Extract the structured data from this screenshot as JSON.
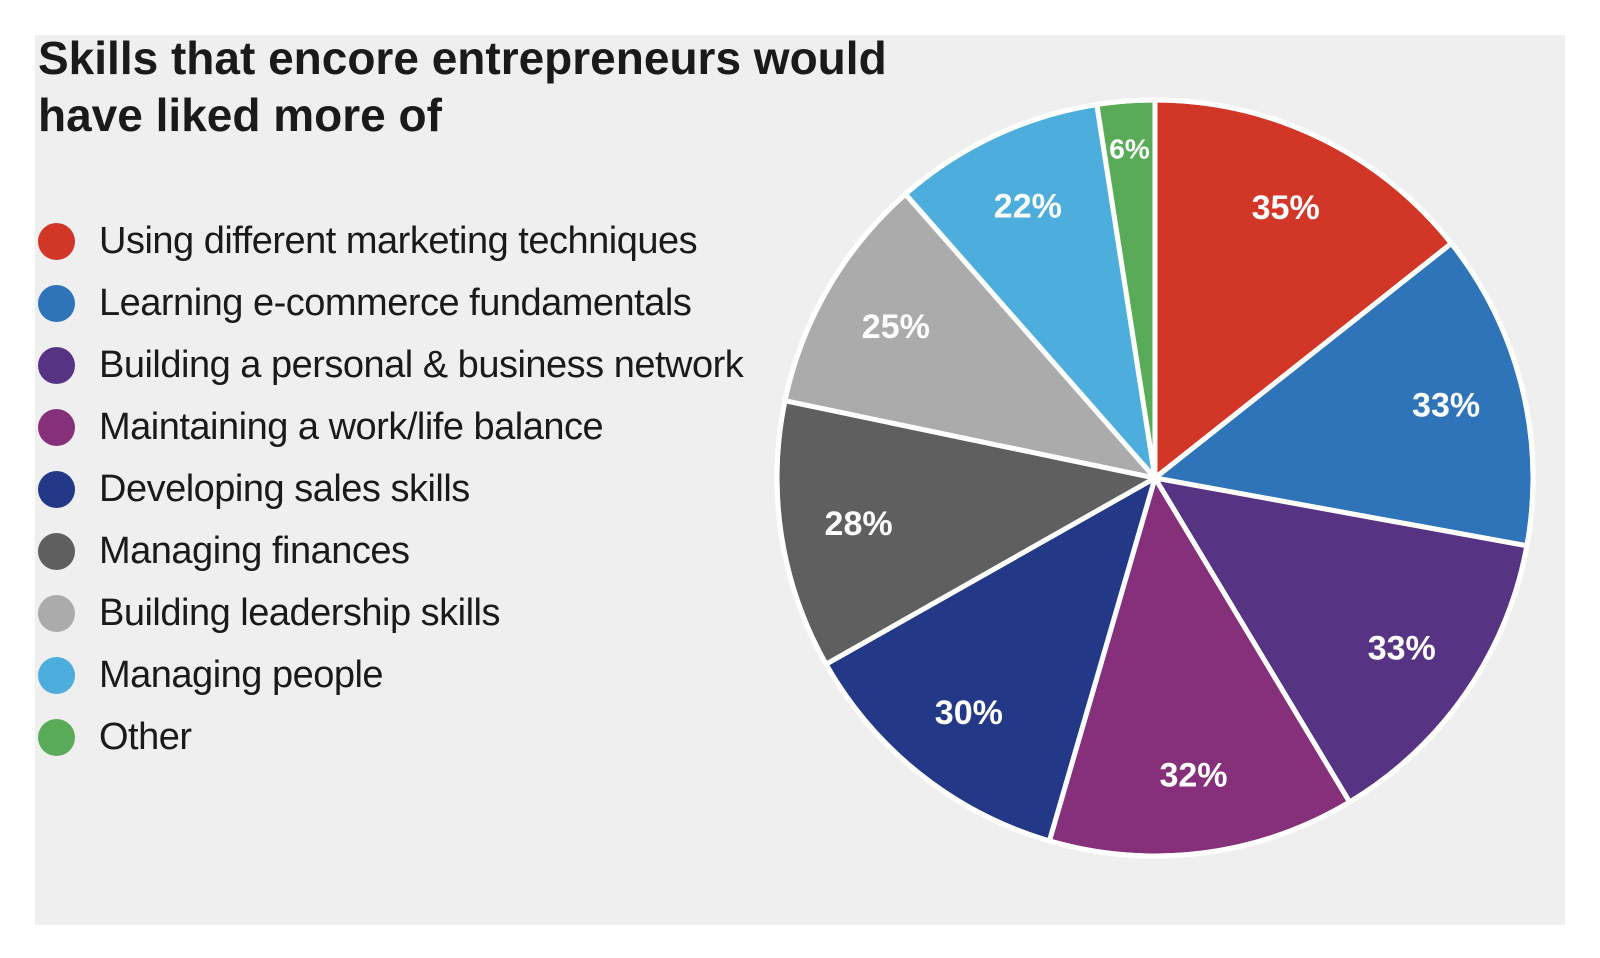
{
  "chart_data": {
    "type": "pie",
    "title": "Skills that encore entrepreneurs would have liked more of",
    "legend_position": "left",
    "slices": [
      {
        "label": "Using different marketing techniques",
        "value": 35,
        "value_label": "35%",
        "color": "#d13627"
      },
      {
        "label": "Learning e-commerce fundamentals",
        "value": 33,
        "value_label": "33%",
        "color": "#2f73b9"
      },
      {
        "label": "Building a personal & business network",
        "value": 33,
        "value_label": "33%",
        "color": "#573483"
      },
      {
        "label": "Maintaining a work/life balance",
        "value": 32,
        "value_label": "32%",
        "color": "#86307b"
      },
      {
        "label": "Developing sales skills",
        "value": 30,
        "value_label": "30%",
        "color": "#243888"
      },
      {
        "label": "Managing finances",
        "value": 28,
        "value_label": "28%",
        "color": "#5f5f5f"
      },
      {
        "label": "Building leadership skills",
        "value": 25,
        "value_label": "25%",
        "color": "#ababab"
      },
      {
        "label": "Managing people",
        "value": 22,
        "value_label": "22%",
        "color": "#4daedd"
      },
      {
        "label": "Other",
        "value": 6,
        "value_label": "6%",
        "color": "#5aab58"
      }
    ]
  }
}
